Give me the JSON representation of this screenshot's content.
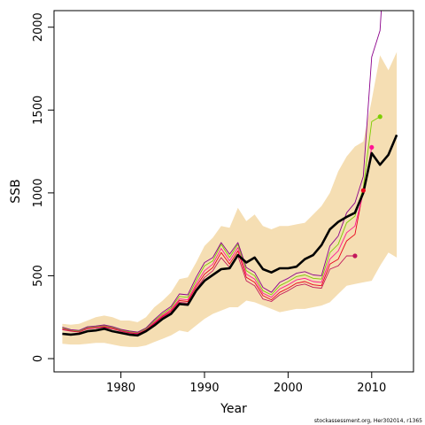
{
  "chart_data": {
    "type": "line",
    "title": "",
    "xlabel": "Year",
    "ylabel": "SSB",
    "xlim": [
      1972,
      2015
    ],
    "ylim": [
      -80,
      2100
    ],
    "x_ticks": [
      1980,
      1990,
      2000,
      2010
    ],
    "y_ticks": [
      0,
      500,
      1000,
      1500,
      2000
    ],
    "grid": false,
    "legend": "none",
    "colors": {
      "band": "#f5deb3",
      "main": "#000000",
      "retro_2008": "#c2185b",
      "retro_2009": "#e8001c",
      "retro_2010": "#ff1493",
      "retro_2011": "#7ccd00",
      "retro_2012": "#8b008b"
    },
    "confidence_band": {
      "x": [
        1973,
        1974,
        1975,
        1976,
        1977,
        1978,
        1979,
        1980,
        1981,
        1982,
        1983,
        1984,
        1985,
        1986,
        1987,
        1988,
        1989,
        1990,
        1991,
        1992,
        1993,
        1994,
        1995,
        1996,
        1997,
        1998,
        1999,
        2000,
        2001,
        2002,
        2003,
        2004,
        2005,
        2006,
        2007,
        2008,
        2009,
        2010,
        2011,
        2012,
        2013
      ],
      "lower": [
        90,
        85,
        85,
        90,
        95,
        95,
        85,
        75,
        70,
        70,
        80,
        100,
        120,
        140,
        170,
        160,
        200,
        240,
        270,
        290,
        310,
        310,
        350,
        340,
        320,
        300,
        280,
        290,
        300,
        300,
        310,
        320,
        340,
        390,
        440,
        450,
        460,
        470,
        560,
        640,
        610
      ],
      "upper": [
        210,
        205,
        210,
        230,
        250,
        260,
        250,
        230,
        230,
        220,
        250,
        310,
        350,
        400,
        480,
        490,
        580,
        680,
        730,
        800,
        790,
        910,
        830,
        870,
        800,
        780,
        800,
        800,
        810,
        820,
        870,
        920,
        1000,
        1130,
        1220,
        1280,
        1310,
        1560,
        1830,
        1740,
        1850
      ]
    },
    "series": [
      {
        "id": "main",
        "x": [
          1973,
          1974,
          1975,
          1976,
          1977,
          1978,
          1979,
          1980,
          1981,
          1982,
          1983,
          1984,
          1985,
          1986,
          1987,
          1988,
          1989,
          1990,
          1991,
          1992,
          1993,
          1994,
          1995,
          1996,
          1997,
          1998,
          1999,
          2000,
          2001,
          2002,
          2003,
          2004,
          2005,
          2006,
          2007,
          2008,
          2009,
          2010,
          2011,
          2012,
          2013
        ],
        "values": [
          150,
          145,
          150,
          165,
          170,
          180,
          165,
          155,
          145,
          140,
          165,
          200,
          240,
          270,
          330,
          325,
          410,
          470,
          505,
          540,
          545,
          625,
          580,
          610,
          540,
          520,
          545,
          545,
          555,
          600,
          625,
          685,
          780,
          825,
          855,
          880,
          1000,
          1240,
          1170,
          1230,
          1350
        ]
      },
      {
        "id": "retro_2008",
        "x": [
          1973,
          1974,
          1975,
          1976,
          1977,
          1978,
          1979,
          1980,
          1981,
          1982,
          1983,
          1984,
          1985,
          1986,
          1987,
          1988,
          1989,
          1990,
          1991,
          1992,
          1993,
          1994,
          1995,
          1996,
          1997,
          1998,
          1999,
          2000,
          2001,
          2002,
          2003,
          2004,
          2005,
          2006,
          2007,
          2008
        ],
        "values": [
          175,
          165,
          160,
          180,
          185,
          190,
          180,
          165,
          155,
          150,
          170,
          210,
          250,
          280,
          340,
          335,
          420,
          490,
          530,
          610,
          550,
          620,
          470,
          440,
          360,
          345,
          385,
          410,
          440,
          450,
          430,
          425,
          540,
          560,
          620,
          620
        ]
      },
      {
        "id": "retro_2009",
        "x": [
          1973,
          1974,
          1975,
          1976,
          1977,
          1978,
          1979,
          1980,
          1981,
          1982,
          1983,
          1984,
          1985,
          1986,
          1987,
          1988,
          1989,
          1990,
          1991,
          1992,
          1993,
          1994,
          1995,
          1996,
          1997,
          1998,
          1999,
          2000,
          2001,
          2002,
          2003,
          2004,
          2005,
          2006,
          2007,
          2008,
          2009
        ],
        "values": [
          180,
          168,
          162,
          183,
          188,
          193,
          183,
          168,
          158,
          152,
          173,
          215,
          255,
          288,
          350,
          345,
          435,
          510,
          550,
          640,
          570,
          650,
          490,
          460,
          380,
          355,
          400,
          425,
          455,
          465,
          445,
          440,
          570,
          600,
          710,
          750,
          1015
        ]
      },
      {
        "id": "retro_2010",
        "x": [
          1973,
          1974,
          1975,
          1976,
          1977,
          1978,
          1979,
          1980,
          1981,
          1982,
          1983,
          1984,
          1985,
          1986,
          1987,
          1988,
          1989,
          1990,
          1991,
          1992,
          1993,
          1994,
          1995,
          1996,
          1997,
          1998,
          1999,
          2000,
          2001,
          2002,
          2003,
          2004,
          2005,
          2006,
          2007,
          2008,
          2009,
          2010
        ],
        "values": [
          182,
          170,
          164,
          185,
          190,
          196,
          186,
          170,
          160,
          154,
          176,
          220,
          262,
          296,
          360,
          355,
          450,
          530,
          570,
          665,
          590,
          670,
          510,
          480,
          395,
          370,
          420,
          445,
          475,
          485,
          465,
          460,
          600,
          650,
          760,
          800,
          1000,
          1275
        ]
      },
      {
        "id": "retro_2011",
        "x": [
          1973,
          1974,
          1975,
          1976,
          1977,
          1978,
          1979,
          1980,
          1981,
          1982,
          1983,
          1984,
          1985,
          1986,
          1987,
          1988,
          1989,
          1990,
          1991,
          1992,
          1993,
          1994,
          1995,
          1996,
          1997,
          1998,
          1999,
          2000,
          2001,
          2002,
          2003,
          2004,
          2005,
          2006,
          2007,
          2008,
          2009,
          2010,
          2011
        ],
        "values": [
          185,
          172,
          166,
          188,
          193,
          199,
          189,
          173,
          163,
          157,
          180,
          228,
          270,
          305,
          375,
          370,
          470,
          560,
          590,
          690,
          610,
          690,
          530,
          500,
          410,
          385,
          440,
          465,
          495,
          505,
          485,
          480,
          640,
          690,
          820,
          860,
          1030,
          1430,
          1460
        ]
      },
      {
        "id": "retro_2012",
        "x": [
          1973,
          1974,
          1975,
          1976,
          1977,
          1978,
          1979,
          1980,
          1981,
          1982,
          1983,
          1984,
          1985,
          1986,
          1987,
          1988,
          1989,
          1990,
          1991,
          1992,
          1993,
          1994,
          1995,
          1996,
          1997,
          1998,
          1999,
          2000,
          2001,
          2002,
          2003,
          2004,
          2005,
          2006,
          2007,
          2008,
          2009,
          2010,
          2011,
          2012
        ],
        "values": [
          190,
          175,
          170,
          192,
          197,
          203,
          193,
          177,
          167,
          160,
          185,
          235,
          280,
          315,
          390,
          385,
          490,
          580,
          610,
          700,
          630,
          700,
          550,
          520,
          430,
          400,
          460,
          485,
          515,
          525,
          505,
          500,
          680,
          740,
          880,
          940,
          1100,
          1820,
          1980,
          2800
        ]
      }
    ],
    "endpoints": [
      {
        "id": "retro_2008",
        "x": 2008,
        "y": 620
      },
      {
        "id": "retro_2009",
        "x": 2009,
        "y": 1015
      },
      {
        "id": "retro_2010",
        "x": 2010,
        "y": 1275
      },
      {
        "id": "retro_2011",
        "x": 2011,
        "y": 1460
      }
    ]
  },
  "footer": "stockassessment.org, Her302014, r1365"
}
